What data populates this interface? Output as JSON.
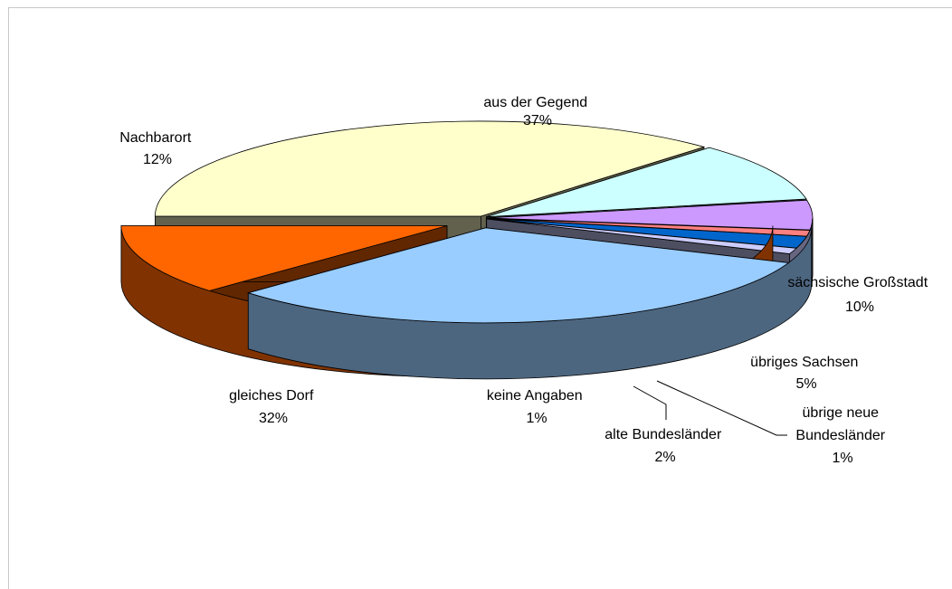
{
  "chart_data": {
    "type": "pie",
    "style": "3d-exploded",
    "legend": "none",
    "slices": [
      {
        "label": "aus der Gegend",
        "percent_text": "37%",
        "value": 37,
        "color": "#ffffcc"
      },
      {
        "label": "sächsische Großstadt",
        "percent_text": "10%",
        "value": 10,
        "color": "#ccffff"
      },
      {
        "label": "übriges Sachsen",
        "percent_text": "5%",
        "value": 5,
        "color": "#cc99ff"
      },
      {
        "label": "übrige neue Bundesländer",
        "label_lines": [
          "übrige neue",
          "Bundesländer"
        ],
        "percent_text": "1%",
        "value": 1,
        "color": "#ff8080"
      },
      {
        "label": "alte Bundesländer",
        "percent_text": "2%",
        "value": 2,
        "color": "#0066cc"
      },
      {
        "label": "keine Angaben",
        "percent_text": "1%",
        "value": 1,
        "color": "#ccccff"
      },
      {
        "label": "gleiches Dorf",
        "percent_text": "32%",
        "value": 32,
        "color": "#99ccff"
      },
      {
        "label": "Nachbarort",
        "percent_text": "12%",
        "value": 12,
        "color": "#ff6600"
      }
    ]
  }
}
